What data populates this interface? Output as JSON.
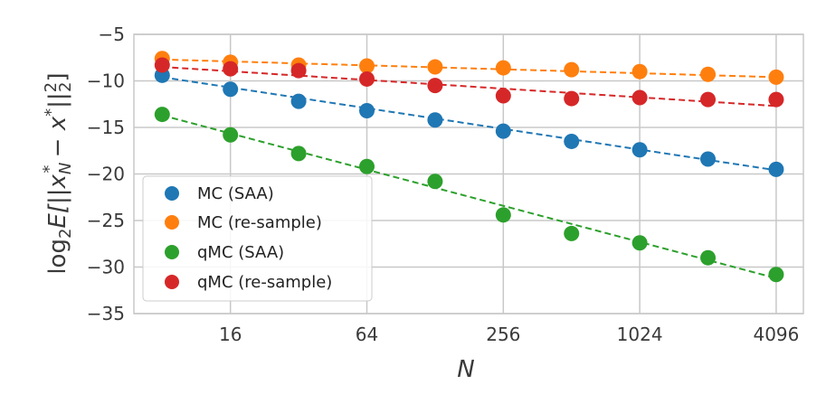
{
  "chart_data": {
    "type": "scatter",
    "xscale": "log2",
    "x": [
      8,
      16,
      32,
      64,
      128,
      256,
      512,
      1024,
      2048,
      4096
    ],
    "xticks": [
      16,
      64,
      256,
      1024,
      4096
    ],
    "xtick_labels": [
      "16",
      "64",
      "256",
      "1024",
      "4096"
    ],
    "xlim": [
      6,
      5400
    ],
    "ylim": [
      -35,
      -5
    ],
    "yticks": [
      -35,
      -30,
      -25,
      -20,
      -15,
      -10,
      -5
    ],
    "ytick_labels": [
      "−35",
      "−30",
      "−25",
      "−20",
      "−15",
      "−10",
      "−5"
    ],
    "xlabel": "N",
    "ylabel_parts": {
      "log": "log",
      "log_sub": "2",
      "expr": "E[||x",
      "x_sub": "N",
      "x_sup": "*",
      "minus": " − x",
      "x2_sup": "*",
      "close": "||",
      "norm_sup": "2",
      "norm_sub": "2",
      "bracket": "]"
    },
    "grid": true,
    "legend_position": "lower-left",
    "series": [
      {
        "name": "MC (SAA)",
        "color": "#1f77b4",
        "values": [
          -9.4,
          -10.9,
          -12.2,
          -13.2,
          -14.2,
          -15.4,
          -16.5,
          -17.4,
          -18.4,
          -19.5
        ],
        "fit": [
          -9.6,
          -19.6
        ]
      },
      {
        "name": "MC (re-sample)",
        "color": "#ff7f0e",
        "values": [
          -7.6,
          -8.0,
          -8.3,
          -8.4,
          -8.5,
          -8.6,
          -8.8,
          -9.0,
          -9.3,
          -9.6
        ],
        "fit": [
          -7.7,
          -9.6
        ]
      },
      {
        "name": "qMC (SAA)",
        "color": "#2ca02c",
        "values": [
          -13.6,
          -15.8,
          -17.8,
          -19.2,
          -20.8,
          -24.4,
          -26.4,
          -27.4,
          -29.0,
          -30.8
        ],
        "fit": [
          -13.7,
          -31.2
        ]
      },
      {
        "name": "qMC (re-sample)",
        "color": "#d62728",
        "values": [
          -8.3,
          -8.7,
          -8.9,
          -9.8,
          -10.5,
          -11.6,
          -11.9,
          -11.8,
          -12.0,
          -12.0
        ],
        "fit": [
          -8.5,
          -12.7
        ]
      }
    ]
  }
}
